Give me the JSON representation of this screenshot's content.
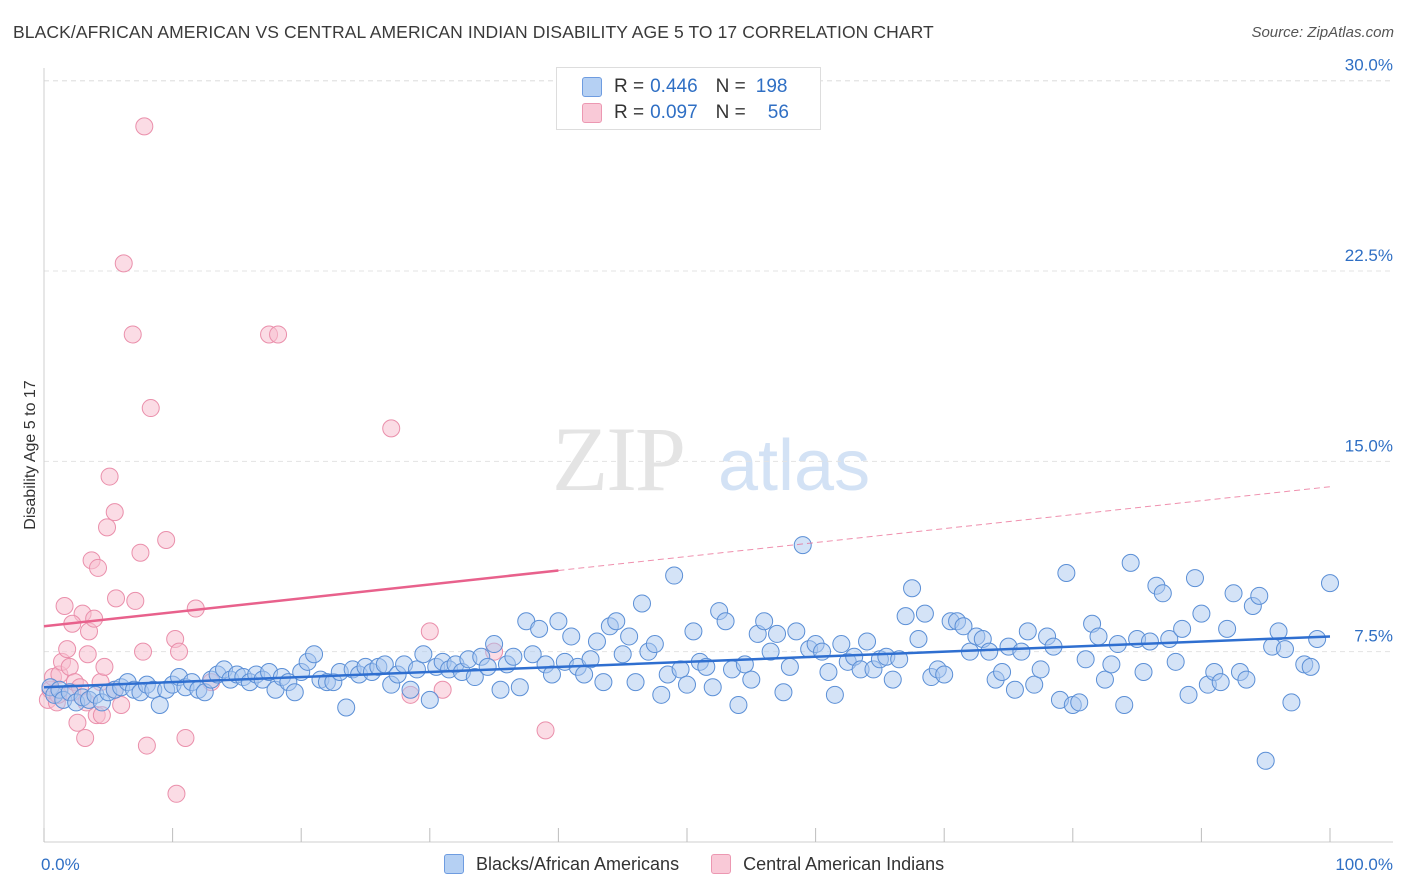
{
  "header": {
    "title": "BLACK/AFRICAN AMERICAN VS CENTRAL AMERICAN INDIAN DISABILITY AGE 5 TO 17 CORRELATION CHART",
    "source": "Source: ZipAtlas.com"
  },
  "watermark": {
    "zip": "ZIP",
    "atlas": "atlas"
  },
  "stats_legend": [
    {
      "r_label": "R =",
      "r_value": "0.446",
      "n_label": "N =",
      "n_value": "198"
    },
    {
      "r_label": "R =",
      "r_value": "0.097",
      "n_label": "N =",
      "n_value": "56"
    }
  ],
  "colors": {
    "blue_fill": "#a9c8f0",
    "blue_stroke": "#5b8fd6",
    "blue_line": "#2f6fd0",
    "pink_fill": "#f7c0d0",
    "pink_stroke": "#ea8fab",
    "pink_line": "#e8618c",
    "tick_label": "#2f6fc4",
    "grid": "#e3e3e3"
  },
  "chart_data": {
    "type": "scatter",
    "title": "BLACK/AFRICAN AMERICAN VS CENTRAL AMERICAN INDIAN DISABILITY AGE 5 TO 17 CORRELATION CHART",
    "xlabel": "",
    "ylabel": "Disability Age 5 to 17",
    "xlim": [
      0,
      100
    ],
    "ylim": [
      0,
      30.5
    ],
    "x_tick_labels": [
      "0.0%",
      "100.0%"
    ],
    "y_ticks": [
      7.5,
      15.0,
      22.5,
      30.0
    ],
    "y_tick_labels": [
      "7.5%",
      "15.0%",
      "22.5%",
      "30.0%"
    ],
    "grid": "horizontal dashed",
    "legend_position": "bottom",
    "series": [
      {
        "name": "Blacks/African Americans",
        "r": 0.446,
        "n": 198,
        "trend": {
          "x": [
            0,
            100
          ],
          "y": [
            6.1,
            8.1
          ],
          "style": "solid"
        },
        "points": [
          [
            0.5,
            6.1
          ],
          [
            0.8,
            5.8
          ],
          [
            1.2,
            6.0
          ],
          [
            1.5,
            5.6
          ],
          [
            2.0,
            5.9
          ],
          [
            2.5,
            5.5
          ],
          [
            3.0,
            5.7
          ],
          [
            3.5,
            5.6
          ],
          [
            4.0,
            5.8
          ],
          [
            4.5,
            5.5
          ],
          [
            5.0,
            5.9
          ],
          [
            5.5,
            6.0
          ],
          [
            6.0,
            6.1
          ],
          [
            6.5,
            6.3
          ],
          [
            7.0,
            6.0
          ],
          [
            7.5,
            5.9
          ],
          [
            8.0,
            6.2
          ],
          [
            8.5,
            6.0
          ],
          [
            9.0,
            5.4
          ],
          [
            9.5,
            6.0
          ],
          [
            10.0,
            6.2
          ],
          [
            10.5,
            6.5
          ],
          [
            11.0,
            6.1
          ],
          [
            11.5,
            6.3
          ],
          [
            12.0,
            6.0
          ],
          [
            12.5,
            5.9
          ],
          [
            13.0,
            6.4
          ],
          [
            13.5,
            6.6
          ],
          [
            14.0,
            6.8
          ],
          [
            14.5,
            6.4
          ],
          [
            15.0,
            6.6
          ],
          [
            15.5,
            6.5
          ],
          [
            16.0,
            6.3
          ],
          [
            16.5,
            6.6
          ],
          [
            17.0,
            6.4
          ],
          [
            17.5,
            6.7
          ],
          [
            18.0,
            6.0
          ],
          [
            18.5,
            6.5
          ],
          [
            19.0,
            6.3
          ],
          [
            19.5,
            5.9
          ],
          [
            20.0,
            6.7
          ],
          [
            20.5,
            7.1
          ],
          [
            21.0,
            7.4
          ],
          [
            21.5,
            6.4
          ],
          [
            22.0,
            6.3
          ],
          [
            22.5,
            6.3
          ],
          [
            23.0,
            6.7
          ],
          [
            23.5,
            5.3
          ],
          [
            24.0,
            6.8
          ],
          [
            24.5,
            6.6
          ],
          [
            25.0,
            6.9
          ],
          [
            25.5,
            6.7
          ],
          [
            26.0,
            6.9
          ],
          [
            26.5,
            7.0
          ],
          [
            27.0,
            6.2
          ],
          [
            27.5,
            6.6
          ],
          [
            28.0,
            7.0
          ],
          [
            28.5,
            6.0
          ],
          [
            29.0,
            6.8
          ],
          [
            29.5,
            7.4
          ],
          [
            30.0,
            5.6
          ],
          [
            30.5,
            6.9
          ],
          [
            31.0,
            7.1
          ],
          [
            31.5,
            6.8
          ],
          [
            32.0,
            7.0
          ],
          [
            32.5,
            6.7
          ],
          [
            33.0,
            7.2
          ],
          [
            33.5,
            6.5
          ],
          [
            34.0,
            7.3
          ],
          [
            34.5,
            6.9
          ],
          [
            35.0,
            7.8
          ],
          [
            35.5,
            6.0
          ],
          [
            36.0,
            7.0
          ],
          [
            36.5,
            7.3
          ],
          [
            37.0,
            6.1
          ],
          [
            37.5,
            8.7
          ],
          [
            38.0,
            7.4
          ],
          [
            38.5,
            8.4
          ],
          [
            39.0,
            7.0
          ],
          [
            39.5,
            6.6
          ],
          [
            40.0,
            8.7
          ],
          [
            40.5,
            7.1
          ],
          [
            41.0,
            8.1
          ],
          [
            41.5,
            6.9
          ],
          [
            42.0,
            6.6
          ],
          [
            42.5,
            7.2
          ],
          [
            43.0,
            7.9
          ],
          [
            43.5,
            6.3
          ],
          [
            44.0,
            8.5
          ],
          [
            44.5,
            8.7
          ],
          [
            45.0,
            7.4
          ],
          [
            45.5,
            8.1
          ],
          [
            46.0,
            6.3
          ],
          [
            46.5,
            9.4
          ],
          [
            47.0,
            7.5
          ],
          [
            47.5,
            7.8
          ],
          [
            48.0,
            5.8
          ],
          [
            48.5,
            6.6
          ],
          [
            49.0,
            10.5
          ],
          [
            49.5,
            6.8
          ],
          [
            50.0,
            6.2
          ],
          [
            50.5,
            8.3
          ],
          [
            51.0,
            7.1
          ],
          [
            51.5,
            6.9
          ],
          [
            52.0,
            6.1
          ],
          [
            52.5,
            9.1
          ],
          [
            53.0,
            8.7
          ],
          [
            53.5,
            6.8
          ],
          [
            54.0,
            5.4
          ],
          [
            54.5,
            7.0
          ],
          [
            55.0,
            6.4
          ],
          [
            55.5,
            8.2
          ],
          [
            56.0,
            8.7
          ],
          [
            56.5,
            7.5
          ],
          [
            57.0,
            8.2
          ],
          [
            57.5,
            5.9
          ],
          [
            58.0,
            6.9
          ],
          [
            58.5,
            8.3
          ],
          [
            59.0,
            11.7
          ],
          [
            59.5,
            7.6
          ],
          [
            60.0,
            7.8
          ],
          [
            60.5,
            7.5
          ],
          [
            61.0,
            6.7
          ],
          [
            61.5,
            5.8
          ],
          [
            62.0,
            7.8
          ],
          [
            62.5,
            7.1
          ],
          [
            63.0,
            7.3
          ],
          [
            63.5,
            6.8
          ],
          [
            64.0,
            7.9
          ],
          [
            64.5,
            6.8
          ],
          [
            65.0,
            7.2
          ],
          [
            65.5,
            7.3
          ],
          [
            66.0,
            6.4
          ],
          [
            66.5,
            7.2
          ],
          [
            67.0,
            8.9
          ],
          [
            67.5,
            10.0
          ],
          [
            68.0,
            8.0
          ],
          [
            68.5,
            9.0
          ],
          [
            69.0,
            6.5
          ],
          [
            69.5,
            6.8
          ],
          [
            70.0,
            6.6
          ],
          [
            70.5,
            8.7
          ],
          [
            71.0,
            8.7
          ],
          [
            71.5,
            8.5
          ],
          [
            72.0,
            7.5
          ],
          [
            72.5,
            8.1
          ],
          [
            73.0,
            8.0
          ],
          [
            73.5,
            7.5
          ],
          [
            74.0,
            6.4
          ],
          [
            74.5,
            6.7
          ],
          [
            75.0,
            7.7
          ],
          [
            75.5,
            6.0
          ],
          [
            76.0,
            7.5
          ],
          [
            76.5,
            8.3
          ],
          [
            77.0,
            6.2
          ],
          [
            77.5,
            6.8
          ],
          [
            78.0,
            8.1
          ],
          [
            78.5,
            7.7
          ],
          [
            79.0,
            5.6
          ],
          [
            79.5,
            10.6
          ],
          [
            80.0,
            5.4
          ],
          [
            80.5,
            5.5
          ],
          [
            81.0,
            7.2
          ],
          [
            81.5,
            8.6
          ],
          [
            82.0,
            8.1
          ],
          [
            82.5,
            6.4
          ],
          [
            83.0,
            7.0
          ],
          [
            83.5,
            7.8
          ],
          [
            84.0,
            5.4
          ],
          [
            84.5,
            11.0
          ],
          [
            85.0,
            8.0
          ],
          [
            85.5,
            6.7
          ],
          [
            86.0,
            7.9
          ],
          [
            86.5,
            10.1
          ],
          [
            87.0,
            9.8
          ],
          [
            87.5,
            8.0
          ],
          [
            88.0,
            7.1
          ],
          [
            88.5,
            8.4
          ],
          [
            89.0,
            5.8
          ],
          [
            89.5,
            10.4
          ],
          [
            90.0,
            9.0
          ],
          [
            90.5,
            6.2
          ],
          [
            91.0,
            6.7
          ],
          [
            91.5,
            6.3
          ],
          [
            92.0,
            8.4
          ],
          [
            92.5,
            9.8
          ],
          [
            93.0,
            6.7
          ],
          [
            93.5,
            6.4
          ],
          [
            94.0,
            9.3
          ],
          [
            94.5,
            9.7
          ],
          [
            95.0,
            3.2
          ],
          [
            95.5,
            7.7
          ],
          [
            96.0,
            8.3
          ],
          [
            96.5,
            7.6
          ],
          [
            100.0,
            10.2
          ],
          [
            97.0,
            5.5
          ],
          [
            98.0,
            7.0
          ],
          [
            98.5,
            6.9
          ],
          [
            99.0,
            8.0
          ]
        ]
      },
      {
        "name": "Central American Indians",
        "r": 0.097,
        "n": 56,
        "trend": {
          "x": [
            0,
            40
          ],
          "y": [
            8.5,
            10.7
          ],
          "style": "solid",
          "extension": {
            "x": [
              40,
              100
            ],
            "y": [
              10.7,
              14.0
            ],
            "style": "dashed"
          }
        },
        "points": [
          [
            0.3,
            5.6
          ],
          [
            0.5,
            6.0
          ],
          [
            0.7,
            6.5
          ],
          [
            1.0,
            5.5
          ],
          [
            1.2,
            6.6
          ],
          [
            1.4,
            7.1
          ],
          [
            1.6,
            9.3
          ],
          [
            1.8,
            7.6
          ],
          [
            2.0,
            6.9
          ],
          [
            2.2,
            5.9
          ],
          [
            2.4,
            6.3
          ],
          [
            2.6,
            4.7
          ],
          [
            2.8,
            6.1
          ],
          [
            3.0,
            9.0
          ],
          [
            3.2,
            4.1
          ],
          [
            3.4,
            7.4
          ],
          [
            3.5,
            8.3
          ],
          [
            3.7,
            11.1
          ],
          [
            3.9,
            8.8
          ],
          [
            4.1,
            5.0
          ],
          [
            4.2,
            10.8
          ],
          [
            4.4,
            6.3
          ],
          [
            4.5,
            5.0
          ],
          [
            4.7,
            6.9
          ],
          [
            4.9,
            12.4
          ],
          [
            5.1,
            14.4
          ],
          [
            5.5,
            6.0
          ],
          [
            5.5,
            13.0
          ],
          [
            5.6,
            9.6
          ],
          [
            6.0,
            5.4
          ],
          [
            6.2,
            22.8
          ],
          [
            6.9,
            20.0
          ],
          [
            7.1,
            9.5
          ],
          [
            7.5,
            11.4
          ],
          [
            7.7,
            7.5
          ],
          [
            7.8,
            28.2
          ],
          [
            8.0,
            3.8
          ],
          [
            8.3,
            17.1
          ],
          [
            9.5,
            11.9
          ],
          [
            10.2,
            8.0
          ],
          [
            10.3,
            1.9
          ],
          [
            10.5,
            7.5
          ],
          [
            11.0,
            4.1
          ],
          [
            11.8,
            9.2
          ],
          [
            13.0,
            6.3
          ],
          [
            17.5,
            20.0
          ],
          [
            18.2,
            20.0
          ],
          [
            27.0,
            16.3
          ],
          [
            28.5,
            5.8
          ],
          [
            30.0,
            8.3
          ],
          [
            31.0,
            6.0
          ],
          [
            35.0,
            7.5
          ],
          [
            39.0,
            4.4
          ],
          [
            2.2,
            8.6
          ],
          [
            1.1,
            5.8
          ],
          [
            3.3,
            5.5
          ]
        ]
      }
    ]
  },
  "bottom_legend": [
    {
      "label": "Blacks/African Americans"
    },
    {
      "label": "Central American Indians"
    }
  ]
}
